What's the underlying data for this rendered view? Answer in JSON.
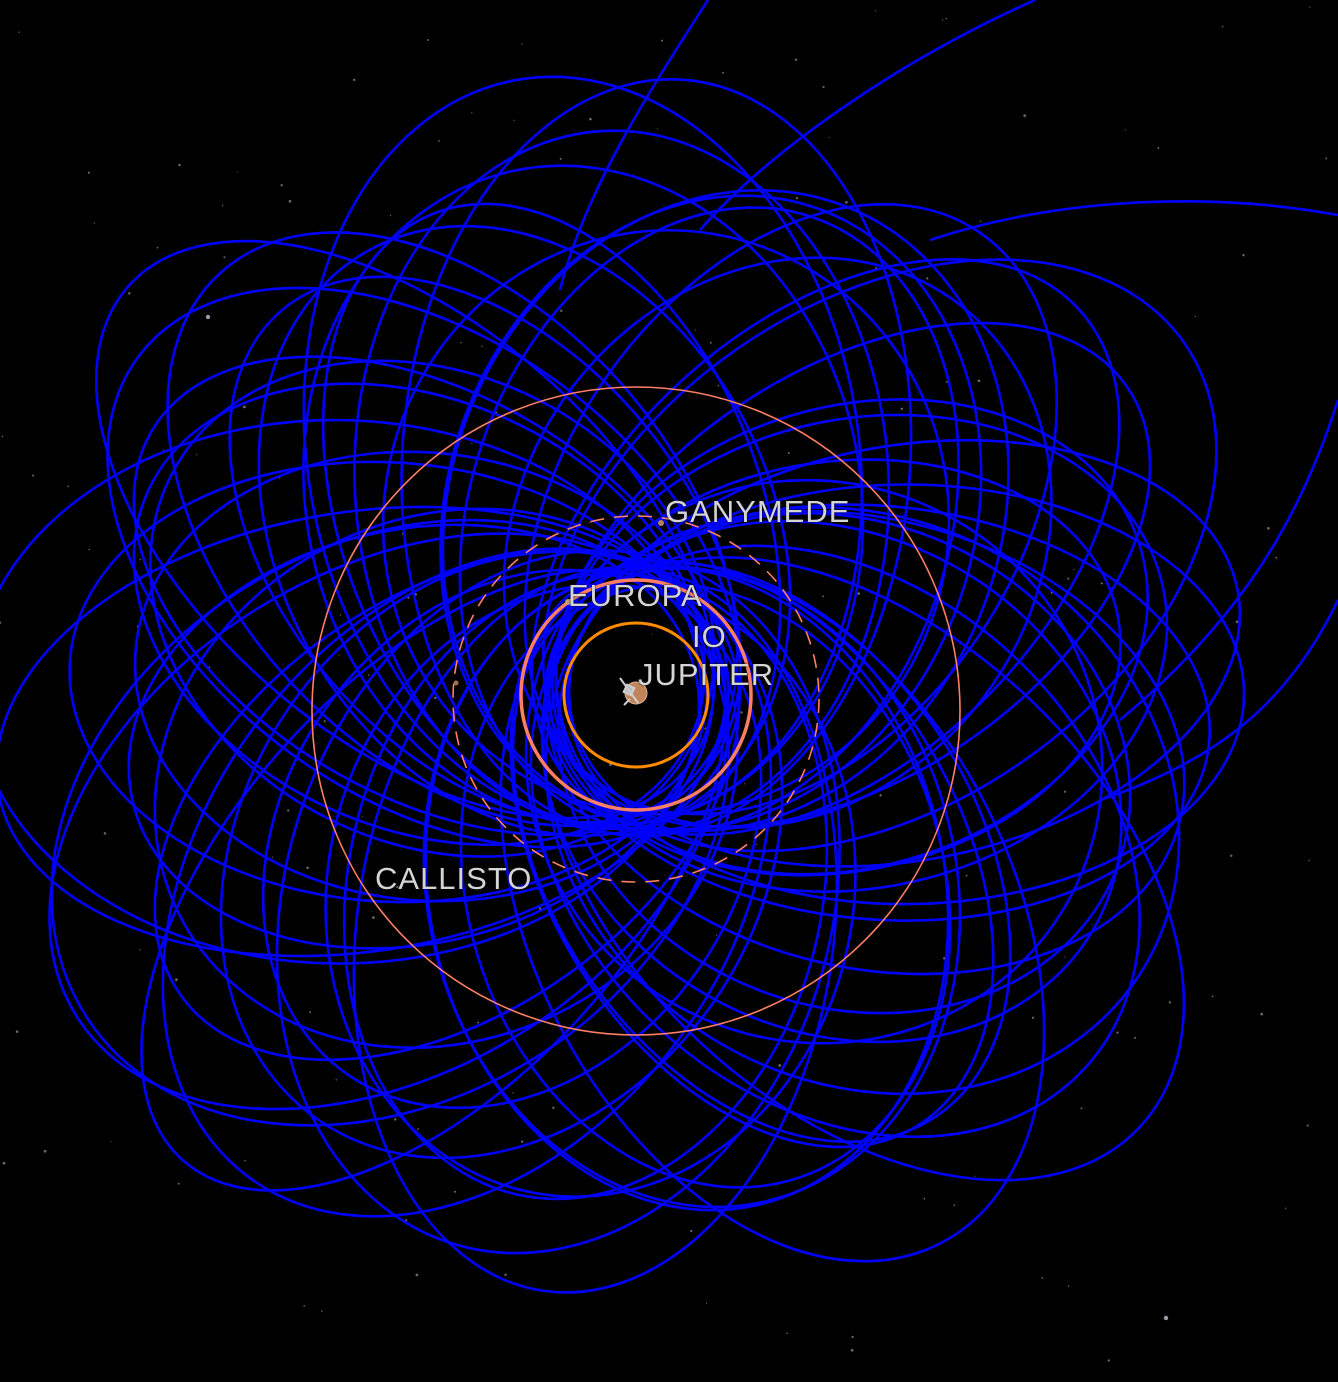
{
  "scene": {
    "background": "#000000",
    "trajectory_color": "#0000ff",
    "moon_orbit_colors": {
      "io": "#ff8c00",
      "europa": "#ff7f66",
      "ganymede": "#ff7f66",
      "callisto": "#ff7f66"
    }
  },
  "labels": {
    "ganymede": "GANYMEDE",
    "europa": "EUROPA",
    "io": "IO",
    "jupiter": "JUPITER",
    "callisto": "CALLISTO"
  },
  "icons": {
    "spacecraft": "spacecraft-icon",
    "jupiter": "planet-icon"
  }
}
